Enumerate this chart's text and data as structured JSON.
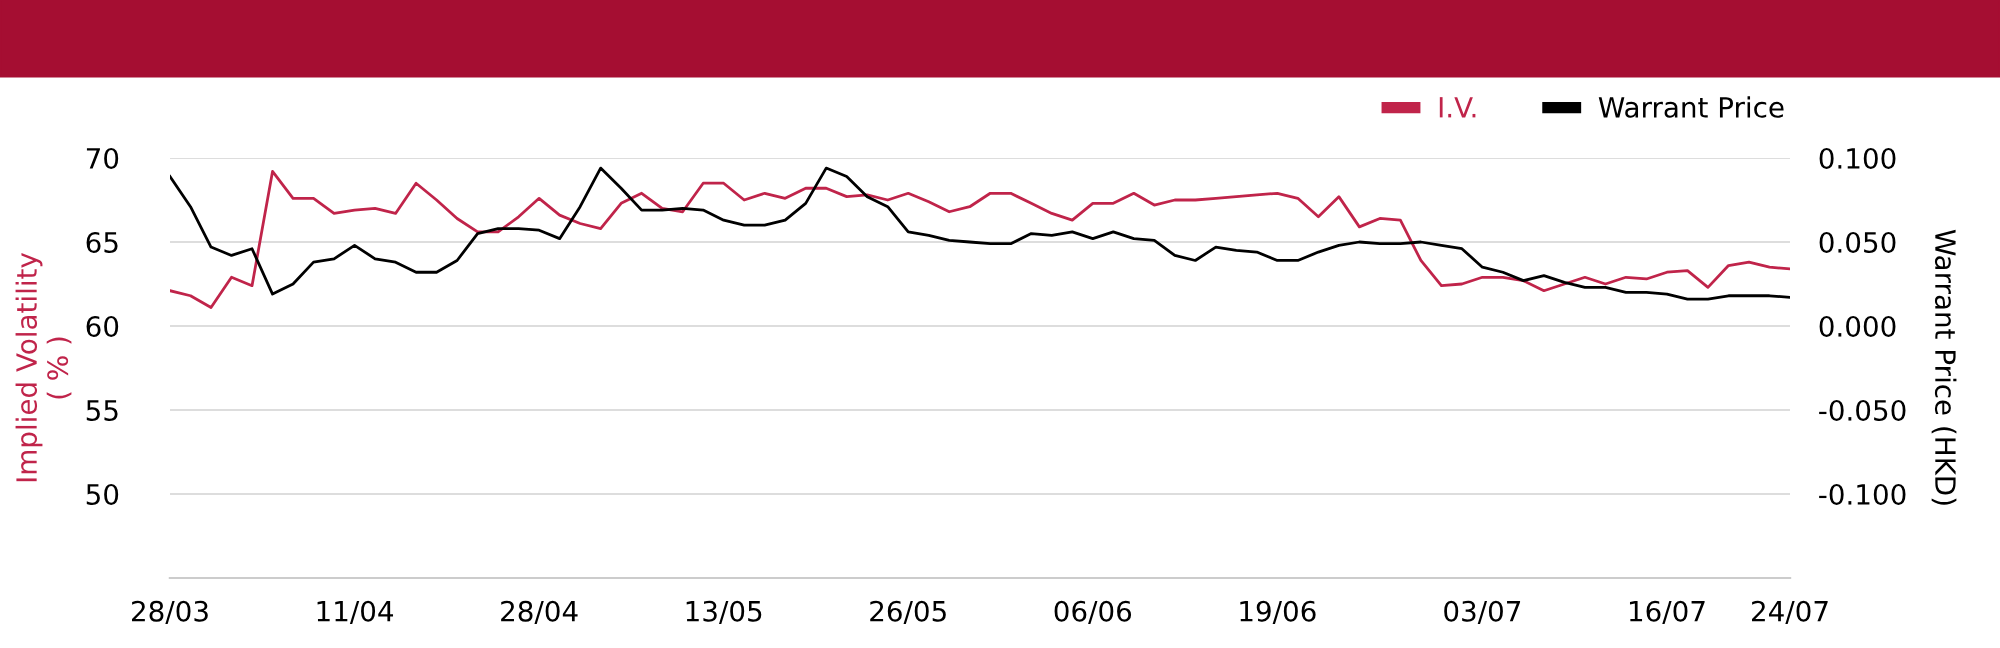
{
  "chart_data": {
    "type": "line",
    "categories": [
      "28/03",
      null,
      null,
      null,
      null,
      null,
      null,
      null,
      null,
      "11/04",
      null,
      null,
      null,
      null,
      null,
      null,
      null,
      null,
      "28/04",
      null,
      null,
      null,
      null,
      null,
      null,
      null,
      null,
      "13/05",
      null,
      null,
      null,
      null,
      null,
      null,
      null,
      null,
      "26/05",
      null,
      null,
      null,
      null,
      null,
      null,
      null,
      null,
      "06/06",
      null,
      null,
      null,
      null,
      null,
      null,
      null,
      null,
      "19/06",
      null,
      null,
      null,
      null,
      null,
      null,
      null,
      null,
      null,
      "03/07",
      null,
      null,
      null,
      null,
      null,
      null,
      null,
      null,
      "16/07",
      null,
      null,
      null,
      null,
      null,
      "24/07"
    ],
    "series": [
      {
        "name": "I.V.",
        "color": "#c0244a",
        "values": [
          62.1,
          61.8,
          61.1,
          62.9,
          62.4,
          69.2,
          67.6,
          67.6,
          66.7,
          66.9,
          67.0,
          66.7,
          68.5,
          67.5,
          66.4,
          65.6,
          65.6,
          66.5,
          67.6,
          66.6,
          66.1,
          65.8,
          67.3,
          67.9,
          67.0,
          66.8,
          68.5,
          68.5,
          67.5,
          67.9,
          67.6,
          68.2,
          68.2,
          67.7,
          67.8,
          67.5,
          67.9,
          67.4,
          66.8,
          67.1,
          67.9,
          67.9,
          67.3,
          66.7,
          66.3,
          67.3,
          67.3,
          67.9,
          67.2,
          67.5,
          67.5,
          67.6,
          67.7,
          67.8,
          67.9,
          67.6,
          66.5,
          67.7,
          65.9,
          66.4,
          66.3,
          63.9,
          62.4,
          62.5,
          62.9,
          62.9,
          62.7,
          62.1,
          62.5,
          62.9,
          62.5,
          62.9,
          62.8,
          63.2,
          63.3,
          62.3,
          63.6,
          63.8,
          63.5,
          63.4
        ]
      },
      {
        "name": "Warrant Price",
        "color": "#000000",
        "axis": "y2",
        "values": [
          0.089,
          0.071,
          0.047,
          0.042,
          0.046,
          0.019,
          0.025,
          0.038,
          0.04,
          0.048,
          0.04,
          0.038,
          0.032,
          0.032,
          0.039,
          0.055,
          0.058,
          0.058,
          0.057,
          0.052,
          0.071,
          0.094,
          0.082,
          0.069,
          0.069,
          0.07,
          0.069,
          0.063,
          0.06,
          0.06,
          0.063,
          0.073,
          0.094,
          0.089,
          0.077,
          0.071,
          0.056,
          0.054,
          0.051,
          0.05,
          0.049,
          0.049,
          0.055,
          0.054,
          0.056,
          0.052,
          0.056,
          0.052,
          0.051,
          0.042,
          0.039,
          0.047,
          0.045,
          0.044,
          0.039,
          0.039,
          0.044,
          0.048,
          0.05,
          0.049,
          0.049,
          0.05,
          0.048,
          0.046,
          0.035,
          0.032,
          0.027,
          0.03,
          0.026,
          0.023,
          0.023,
          0.02,
          0.02,
          0.019,
          0.016,
          0.016,
          0.018,
          0.018,
          0.018,
          0.017
        ]
      }
    ],
    "ylabel": "Implied Volatility\n( % )",
    "y2label": "Warrant Price (HKD)",
    "ylim": [
      45,
      70
    ],
    "yticks": [
      50,
      55,
      60,
      65,
      70
    ],
    "y2lim": [
      -0.15,
      0.1
    ],
    "y2ticks": [
      {
        "value": -0.1,
        "label": "-0.100"
      },
      {
        "value": -0.05,
        "label": "-0.050"
      },
      {
        "value": 0,
        "label": "0.000"
      },
      {
        "value": 0.05,
        "label": "0.050"
      },
      {
        "value": 0.1,
        "label": "0.100"
      }
    ],
    "grid": "y",
    "legend": "top right",
    "marker": "none",
    "line_style": "solid"
  }
}
